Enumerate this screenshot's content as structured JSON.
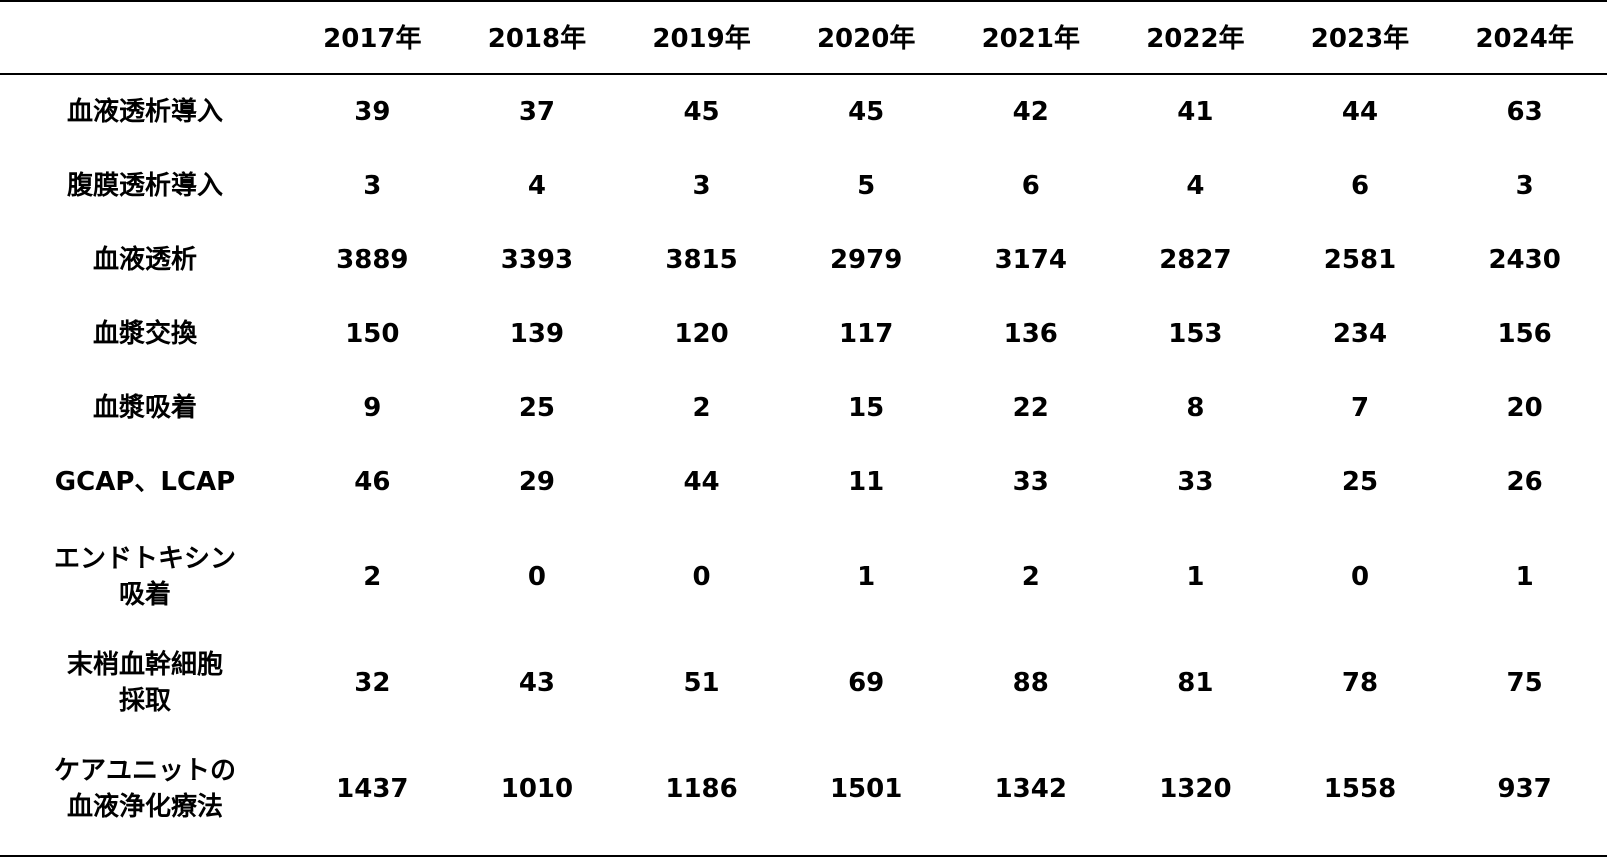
{
  "table": {
    "headers": [
      "",
      "2017年",
      "2018年",
      "2019年",
      "2020年",
      "2021年",
      "2022年",
      "2023年",
      "2024年"
    ],
    "rows": [
      {
        "label": "血液透析導入",
        "values": [
          "39",
          "37",
          "45",
          "45",
          "42",
          "41",
          "44",
          "63"
        ]
      },
      {
        "label": "腹膜透析導入",
        "values": [
          "3",
          "4",
          "3",
          "5",
          "6",
          "4",
          "6",
          "3"
        ]
      },
      {
        "label": "血液透析",
        "values": [
          "3889",
          "3393",
          "3815",
          "2979",
          "3174",
          "2827",
          "2581",
          "2430"
        ]
      },
      {
        "label": "血漿交換",
        "values": [
          "150",
          "139",
          "120",
          "117",
          "136",
          "153",
          "234",
          "156"
        ]
      },
      {
        "label": "血漿吸着",
        "values": [
          "9",
          "25",
          "2",
          "15",
          "22",
          "8",
          "7",
          "20"
        ]
      },
      {
        "label": "GCAP、LCAP",
        "values": [
          "46",
          "29",
          "44",
          "11",
          "33",
          "33",
          "25",
          "26"
        ]
      },
      {
        "label": "エンドトキシン\n吸着",
        "values": [
          "2",
          "0",
          "0",
          "1",
          "2",
          "1",
          "0",
          "1"
        ]
      },
      {
        "label": "末梢血幹細胞\n採取",
        "values": [
          "32",
          "43",
          "51",
          "69",
          "88",
          "81",
          "78",
          "75"
        ]
      },
      {
        "label": "ケアユニットの\n血液浄化療法",
        "values": [
          "1437",
          "1010",
          "1186",
          "1501",
          "1342",
          "1320",
          "1558",
          "937"
        ]
      }
    ]
  }
}
